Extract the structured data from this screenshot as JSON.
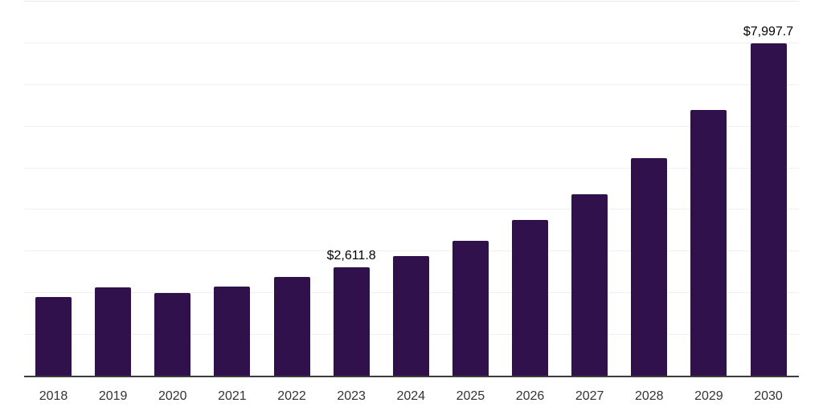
{
  "chart_data": {
    "type": "bar",
    "title": "",
    "xlabel": "",
    "ylabel": "",
    "categories": [
      "2018",
      "2019",
      "2020",
      "2021",
      "2022",
      "2023",
      "2024",
      "2025",
      "2026",
      "2027",
      "2028",
      "2029",
      "2030"
    ],
    "values": [
      1917,
      2130,
      1995,
      2168,
      2399,
      2611.8,
      2894,
      3266,
      3762,
      4378,
      5251,
      6402,
      7997.7
    ],
    "value_labels": {
      "2023": "$2,611.8",
      "2030": "$7,997.7"
    },
    "ylim": [
      0,
      9000
    ],
    "grid": "horizontal",
    "gridline_step": 1000,
    "legend_position": "none",
    "y_tick_labels_visible": false,
    "colors": {
      "bar": "#30114b",
      "axis_line": "#3c3c3c",
      "gridline": "#f0f0f0",
      "x_label_text": "#333333",
      "value_label_text": "#000000",
      "background": "#ffffff"
    }
  }
}
